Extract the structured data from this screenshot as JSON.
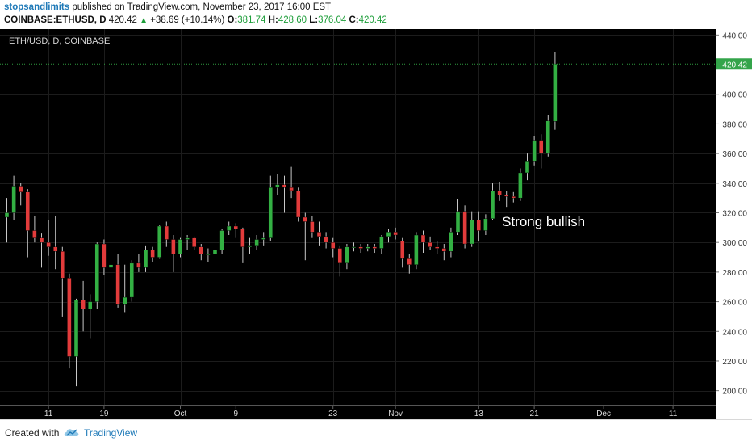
{
  "header": {
    "publisher": "stopsandlimits",
    "published_text": "published on TradingView.com, November 23, 2017 16:00 EST",
    "symbol": "COINBASE:ETHUSD, D",
    "last": "420.42",
    "change": "+38.69 (+10.14%)",
    "open_label": "O:",
    "open": "381.74",
    "high_label": "H:",
    "high": "428.60",
    "low_label": "L:",
    "low": "376.04",
    "close_label": "C:",
    "close": "420.42"
  },
  "footer": {
    "created_with": "Created with",
    "brand": "TradingView",
    "logo_icon": "tradingview-cloud-icon"
  },
  "colors": {
    "background": "#000000",
    "up": "#33b043",
    "down": "#e23b3b",
    "wick": "#c8c8c8",
    "price_line": "#2e9b3f",
    "price_tag": "#34a44a"
  },
  "chart_data": {
    "type": "candlestick",
    "title": "ETH/USD, D, COINBASE",
    "ylim": [
      190,
      444
    ],
    "y_ticks": [
      200,
      220,
      240,
      260,
      280,
      300,
      320,
      340,
      360,
      380,
      400,
      420,
      440
    ],
    "y_tick_labels": [
      "200.00",
      "220.00",
      "240.00",
      "260.00",
      "280.00",
      "300.00",
      "320.00",
      "340.00",
      "360.00",
      "380.00",
      "400.00",
      "420.00",
      "440.00"
    ],
    "x_tick_labels": [
      {
        "label": "11",
        "index": 6
      },
      {
        "label": "19",
        "index": 14
      },
      {
        "label": "Oct",
        "index": 25
      },
      {
        "label": "9",
        "index": 33
      },
      {
        "label": "23",
        "index": 47
      },
      {
        "label": "Nov",
        "index": 56
      },
      {
        "label": "13",
        "index": 68
      },
      {
        "label": "21",
        "index": 76
      },
      {
        "label": "Dec",
        "index": 86
      },
      {
        "label": "11",
        "index": 96
      }
    ],
    "grid": true,
    "last_price": 420.42,
    "last_price_label": "420.42",
    "annotation": {
      "text": "Strong bullish",
      "index": 76,
      "y": 311
    },
    "candles": [
      {
        "date": "2017-09-05",
        "o": 317,
        "h": 330,
        "l": 300,
        "c": 320
      },
      {
        "date": "2017-09-06",
        "o": 320,
        "h": 345,
        "l": 315,
        "c": 338
      },
      {
        "date": "2017-09-07",
        "o": 338,
        "h": 340,
        "l": 325,
        "c": 334
      },
      {
        "date": "2017-09-08",
        "o": 334,
        "h": 336,
        "l": 290,
        "c": 308
      },
      {
        "date": "2017-09-09",
        "o": 308,
        "h": 318,
        "l": 300,
        "c": 303
      },
      {
        "date": "2017-09-10",
        "o": 303,
        "h": 306,
        "l": 283,
        "c": 300
      },
      {
        "date": "2017-09-11",
        "o": 300,
        "h": 315,
        "l": 291,
        "c": 297
      },
      {
        "date": "2017-09-12",
        "o": 297,
        "h": 318,
        "l": 282,
        "c": 294
      },
      {
        "date": "2017-09-13",
        "o": 294,
        "h": 297,
        "l": 250,
        "c": 276
      },
      {
        "date": "2017-09-14",
        "o": 276,
        "h": 279,
        "l": 215,
        "c": 223
      },
      {
        "date": "2017-09-15",
        "o": 223,
        "h": 262,
        "l": 203,
        "c": 261
      },
      {
        "date": "2017-09-16",
        "o": 261,
        "h": 274,
        "l": 240,
        "c": 255
      },
      {
        "date": "2017-09-17",
        "o": 255,
        "h": 265,
        "l": 235,
        "c": 260
      },
      {
        "date": "2017-09-18",
        "o": 260,
        "h": 300,
        "l": 255,
        "c": 299
      },
      {
        "date": "2017-09-19",
        "o": 299,
        "h": 302,
        "l": 278,
        "c": 283
      },
      {
        "date": "2017-09-20",
        "o": 283,
        "h": 296,
        "l": 280,
        "c": 285
      },
      {
        "date": "2017-09-21",
        "o": 285,
        "h": 292,
        "l": 256,
        "c": 258
      },
      {
        "date": "2017-09-22",
        "o": 258,
        "h": 285,
        "l": 253,
        "c": 263
      },
      {
        "date": "2017-09-23",
        "o": 263,
        "h": 288,
        "l": 260,
        "c": 286
      },
      {
        "date": "2017-09-24",
        "o": 286,
        "h": 292,
        "l": 280,
        "c": 283
      },
      {
        "date": "2017-09-25",
        "o": 283,
        "h": 298,
        "l": 280,
        "c": 295
      },
      {
        "date": "2017-09-26",
        "o": 295,
        "h": 297,
        "l": 287,
        "c": 290
      },
      {
        "date": "2017-09-27",
        "o": 290,
        "h": 312,
        "l": 289,
        "c": 311
      },
      {
        "date": "2017-09-28",
        "o": 311,
        "h": 314,
        "l": 297,
        "c": 302
      },
      {
        "date": "2017-09-29",
        "o": 302,
        "h": 305,
        "l": 280,
        "c": 292
      },
      {
        "date": "2017-09-30",
        "o": 292,
        "h": 303,
        "l": 290,
        "c": 302
      },
      {
        "date": "2017-10-01",
        "o": 302,
        "h": 305,
        "l": 295,
        "c": 303
      },
      {
        "date": "2017-10-02",
        "o": 303,
        "h": 304,
        "l": 295,
        "c": 297
      },
      {
        "date": "2017-10-03",
        "o": 297,
        "h": 299,
        "l": 288,
        "c": 292
      },
      {
        "date": "2017-10-04",
        "o": 292,
        "h": 296,
        "l": 287,
        "c": 292
      },
      {
        "date": "2017-10-05",
        "o": 292,
        "h": 297,
        "l": 290,
        "c": 295
      },
      {
        "date": "2017-10-06",
        "o": 295,
        "h": 309,
        "l": 292,
        "c": 308
      },
      {
        "date": "2017-10-07",
        "o": 308,
        "h": 314,
        "l": 305,
        "c": 311
      },
      {
        "date": "2017-10-08",
        "o": 311,
        "h": 313,
        "l": 303,
        "c": 309
      },
      {
        "date": "2017-10-09",
        "o": 309,
        "h": 310,
        "l": 286,
        "c": 297
      },
      {
        "date": "2017-10-10",
        "o": 297,
        "h": 303,
        "l": 292,
        "c": 298
      },
      {
        "date": "2017-10-11",
        "o": 298,
        "h": 305,
        "l": 295,
        "c": 302
      },
      {
        "date": "2017-10-12",
        "o": 302,
        "h": 307,
        "l": 298,
        "c": 303
      },
      {
        "date": "2017-10-13",
        "o": 303,
        "h": 345,
        "l": 301,
        "c": 337
      },
      {
        "date": "2017-10-14",
        "o": 337,
        "h": 346,
        "l": 332,
        "c": 339
      },
      {
        "date": "2017-10-15",
        "o": 339,
        "h": 345,
        "l": 320,
        "c": 337
      },
      {
        "date": "2017-10-16",
        "o": 337,
        "h": 351,
        "l": 330,
        "c": 335
      },
      {
        "date": "2017-10-17",
        "o": 335,
        "h": 337,
        "l": 314,
        "c": 317
      },
      {
        "date": "2017-10-18",
        "o": 317,
        "h": 320,
        "l": 288,
        "c": 314
      },
      {
        "date": "2017-10-19",
        "o": 314,
        "h": 318,
        "l": 303,
        "c": 307
      },
      {
        "date": "2017-10-20",
        "o": 307,
        "h": 314,
        "l": 298,
        "c": 304
      },
      {
        "date": "2017-10-21",
        "o": 304,
        "h": 307,
        "l": 296,
        "c": 300
      },
      {
        "date": "2017-10-22",
        "o": 300,
        "h": 303,
        "l": 290,
        "c": 296
      },
      {
        "date": "2017-10-23",
        "o": 296,
        "h": 298,
        "l": 277,
        "c": 286
      },
      {
        "date": "2017-10-24",
        "o": 286,
        "h": 299,
        "l": 282,
        "c": 297
      },
      {
        "date": "2017-10-25",
        "o": 297,
        "h": 300,
        "l": 294,
        "c": 297
      },
      {
        "date": "2017-10-26",
        "o": 297,
        "h": 299,
        "l": 293,
        "c": 296
      },
      {
        "date": "2017-10-27",
        "o": 296,
        "h": 299,
        "l": 294,
        "c": 297
      },
      {
        "date": "2017-10-28",
        "o": 297,
        "h": 299,
        "l": 293,
        "c": 296
      },
      {
        "date": "2017-10-29",
        "o": 296,
        "h": 305,
        "l": 292,
        "c": 304
      },
      {
        "date": "2017-10-30",
        "o": 304,
        "h": 309,
        "l": 300,
        "c": 307
      },
      {
        "date": "2017-10-31",
        "o": 307,
        "h": 310,
        "l": 302,
        "c": 305
      },
      {
        "date": "2017-11-01",
        "o": 301,
        "h": 303,
        "l": 283,
        "c": 289
      },
      {
        "date": "2017-11-02",
        "o": 289,
        "h": 292,
        "l": 279,
        "c": 285
      },
      {
        "date": "2017-11-03",
        "o": 285,
        "h": 307,
        "l": 282,
        "c": 305
      },
      {
        "date": "2017-11-04",
        "o": 305,
        "h": 308,
        "l": 293,
        "c": 300
      },
      {
        "date": "2017-11-05",
        "o": 300,
        "h": 304,
        "l": 295,
        "c": 297
      },
      {
        "date": "2017-11-06",
        "o": 297,
        "h": 301,
        "l": 292,
        "c": 296
      },
      {
        "date": "2017-11-07",
        "o": 296,
        "h": 299,
        "l": 288,
        "c": 294
      },
      {
        "date": "2017-11-08",
        "o": 294,
        "h": 310,
        "l": 290,
        "c": 307
      },
      {
        "date": "2017-11-09",
        "o": 307,
        "h": 329,
        "l": 305,
        "c": 321
      },
      {
        "date": "2017-11-10",
        "o": 321,
        "h": 325,
        "l": 296,
        "c": 299
      },
      {
        "date": "2017-11-11",
        "o": 299,
        "h": 321,
        "l": 297,
        "c": 315
      },
      {
        "date": "2017-11-12",
        "o": 315,
        "h": 321,
        "l": 301,
        "c": 308
      },
      {
        "date": "2017-11-13",
        "o": 308,
        "h": 319,
        "l": 305,
        "c": 316
      },
      {
        "date": "2017-11-14",
        "o": 316,
        "h": 340,
        "l": 315,
        "c": 335
      },
      {
        "date": "2017-11-15",
        "o": 335,
        "h": 341,
        "l": 328,
        "c": 332
      },
      {
        "date": "2017-11-16",
        "o": 332,
        "h": 335,
        "l": 324,
        "c": 331
      },
      {
        "date": "2017-11-17",
        "o": 331,
        "h": 334,
        "l": 327,
        "c": 330
      },
      {
        "date": "2017-11-18",
        "o": 330,
        "h": 350,
        "l": 328,
        "c": 347
      },
      {
        "date": "2017-11-19",
        "o": 347,
        "h": 360,
        "l": 342,
        "c": 355
      },
      {
        "date": "2017-11-20",
        "o": 355,
        "h": 372,
        "l": 352,
        "c": 369
      },
      {
        "date": "2017-11-21",
        "o": 369,
        "h": 373,
        "l": 350,
        "c": 360
      },
      {
        "date": "2017-11-22",
        "o": 360,
        "h": 386,
        "l": 358,
        "c": 382
      },
      {
        "date": "2017-11-23",
        "o": 381.74,
        "h": 428.6,
        "l": 376.04,
        "c": 420.42
      }
    ]
  }
}
